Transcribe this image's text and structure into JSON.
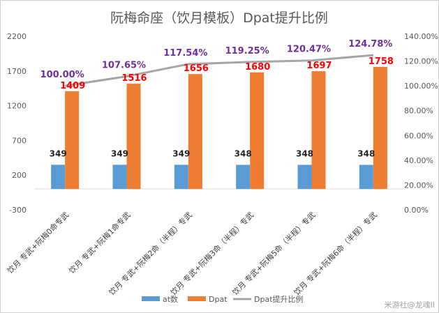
{
  "chart_data": {
    "type": "bar",
    "title": "阮梅命座（饮月模板）Dpat提升比例",
    "categories": [
      "饮月 专武+阮梅0命专武",
      "饮月 专武+阮梅1命专武",
      "饮月 专武+阮梅2命（半程）专武",
      "饮月 专武+阮梅3命（半程）专武",
      "饮月 专武+阮梅5命（半程）专武",
      "饮月 专武+阮梅6命（半程）专武"
    ],
    "series": [
      {
        "name": "at数",
        "type": "bar",
        "axis": "left",
        "color": "#5b9bd5",
        "values": [
          349,
          349,
          349,
          348,
          348,
          348
        ],
        "labels": [
          "349",
          "349",
          "349",
          "348",
          "348",
          "348"
        ]
      },
      {
        "name": "Dpat",
        "type": "bar",
        "axis": "left",
        "color": "#ed7d31",
        "values": [
          1409,
          1516,
          1656,
          1680,
          1697,
          1758
        ],
        "labels": [
          "1409",
          "1516",
          "1656",
          "1680",
          "1697",
          "1758"
        ]
      },
      {
        "name": "Dpat提升比例",
        "type": "line",
        "axis": "right",
        "color": "#a5a5a5",
        "values": [
          100.0,
          107.65,
          117.54,
          119.25,
          120.47,
          124.78
        ],
        "labels": [
          "100.00%",
          "107.65%",
          "117.54%",
          "119.25%",
          "120.47%",
          "124.78%"
        ]
      }
    ],
    "left_axis": {
      "ticks": [
        "2200",
        "1700",
        "1200",
        "700",
        "200",
        "-300"
      ],
      "ylim": [
        -300,
        2200
      ]
    },
    "right_axis": {
      "ticks": [
        "140.00%",
        "120.00%",
        "100.00%",
        "80.00%",
        "60.00%",
        "40.00%",
        "20.00%",
        "0.00%"
      ],
      "ylim": [
        0,
        140
      ]
    },
    "grid": false,
    "legend": "bottom"
  },
  "watermark": "米游社@龙魂II"
}
